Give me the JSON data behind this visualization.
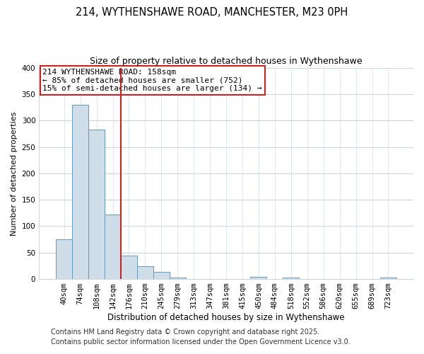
{
  "title": "214, WYTHENSHAWE ROAD, MANCHESTER, M23 0PH",
  "subtitle": "Size of property relative to detached houses in Wythenshawe",
  "xlabel": "Distribution of detached houses by size in Wythenshawe",
  "ylabel": "Number of detached properties",
  "bar_labels": [
    "40sqm",
    "74sqm",
    "108sqm",
    "142sqm",
    "176sqm",
    "210sqm",
    "245sqm",
    "279sqm",
    "313sqm",
    "347sqm",
    "381sqm",
    "415sqm",
    "450sqm",
    "484sqm",
    "518sqm",
    "552sqm",
    "586sqm",
    "620sqm",
    "655sqm",
    "689sqm",
    "723sqm"
  ],
  "bar_values": [
    75,
    330,
    283,
    122,
    44,
    24,
    14,
    3,
    0,
    0,
    0,
    0,
    4,
    0,
    3,
    0,
    0,
    0,
    0,
    0,
    3
  ],
  "bar_color": "#cfdde8",
  "bar_edge_color": "#6699bb",
  "vline_color": "#cc2222",
  "annotation_title": "214 WYTHENSHAWE ROAD: 158sqm",
  "annotation_line1": "← 85% of detached houses are smaller (752)",
  "annotation_line2": "15% of semi-detached houses are larger (134) →",
  "annotation_box_color": "white",
  "annotation_box_edge_color": "#cc2222",
  "ylim": [
    0,
    400
  ],
  "yticks": [
    0,
    50,
    100,
    150,
    200,
    250,
    300,
    350,
    400
  ],
  "footer1": "Contains HM Land Registry data © Crown copyright and database right 2025.",
  "footer2": "Contains public sector information licensed under the Open Government Licence v3.0.",
  "bg_color": "#ffffff",
  "plot_bg_color": "#ffffff",
  "grid_color": "#c8d4e0",
  "title_fontsize": 10.5,
  "subtitle_fontsize": 9,
  "ylabel_fontsize": 8,
  "xlabel_fontsize": 8.5,
  "tick_fontsize": 7.5,
  "footer_fontsize": 7,
  "annotation_fontsize": 8
}
